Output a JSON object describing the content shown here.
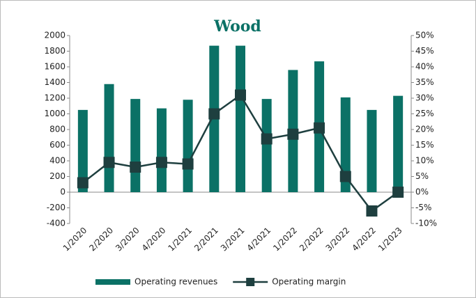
{
  "chart_data": {
    "type": "bar_line",
    "title": "Wood",
    "categories": [
      "1/2020",
      "2/2020",
      "3/2020",
      "4/2020",
      "1/2021",
      "2/2021",
      "3/2021",
      "4/2021",
      "1/2022",
      "2/2022",
      "3/2022",
      "4/2022",
      "1/2023"
    ],
    "series": [
      {
        "name": "Operating revenues",
        "color": "#0b7166",
        "type": "bar",
        "values": [
          1050,
          1380,
          1190,
          1070,
          1180,
          1870,
          1870,
          1190,
          1560,
          1670,
          1210,
          1050,
          1230
        ]
      },
      {
        "name": "Operating margin",
        "color": "#1e3f3f",
        "type": "line",
        "axis": "y2",
        "values": [
          3,
          9.5,
          8,
          9.5,
          9,
          25,
          31,
          17,
          18.5,
          20.5,
          5,
          -6,
          0
        ]
      }
    ],
    "ylim": [
      -400,
      2000
    ],
    "yticks": [
      -400,
      -200,
      0,
      200,
      400,
      600,
      800,
      1000,
      1200,
      1400,
      1600,
      1800,
      2000
    ],
    "y2lim": [
      -10,
      50
    ],
    "y2ticks": [
      {
        "value": -10,
        "label": "-10%"
      },
      {
        "value": -5,
        "label": "-5%"
      },
      {
        "value": 0,
        "label": "0%"
      },
      {
        "value": 5,
        "label": "5%"
      },
      {
        "value": 10,
        "label": "10%"
      },
      {
        "value": 15,
        "label": "15%"
      },
      {
        "value": 20,
        "label": "20%"
      },
      {
        "value": 25,
        "label": "25%"
      },
      {
        "value": 30,
        "label": "30%"
      },
      {
        "value": 35,
        "label": "35%"
      },
      {
        "value": 40,
        "label": "40%"
      },
      {
        "value": 45,
        "label": "45%"
      },
      {
        "value": 50,
        "label": "50%"
      }
    ],
    "legend": "bottom"
  }
}
